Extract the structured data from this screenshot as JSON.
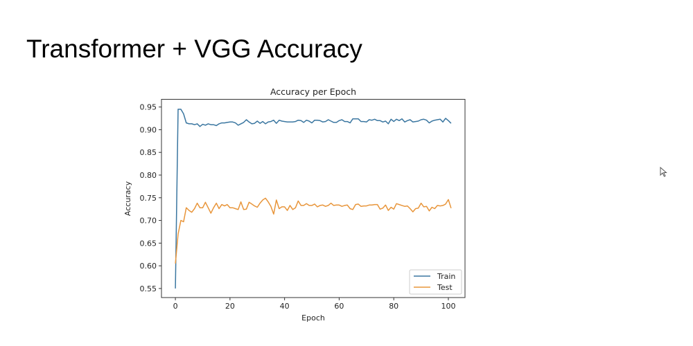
{
  "slide": {
    "title": "Transformer + VGG Accuracy"
  },
  "chart_data": {
    "type": "line",
    "title": "Accuracy per Epoch",
    "xlabel": "Epoch",
    "ylabel": "Accuracy",
    "xlim": [
      -5.1,
      106.1
    ],
    "ylim": [
      0.53,
      0.967
    ],
    "xticks": [
      0,
      20,
      40,
      60,
      80,
      100
    ],
    "xtick_labels": [
      "0",
      "20",
      "40",
      "60",
      "80",
      "100"
    ],
    "yticks": [
      0.55,
      0.6,
      0.65,
      0.7,
      0.75,
      0.8,
      0.85,
      0.9,
      0.95
    ],
    "ytick_labels": [
      "0.55",
      "0.60",
      "0.65",
      "0.70",
      "0.75",
      "0.80",
      "0.85",
      "0.90",
      "0.95"
    ],
    "grid": false,
    "legend": "bottom-right",
    "series": [
      {
        "name": "Train",
        "color": "#3a76a0",
        "values": [
          0.55,
          0.945,
          0.945,
          0.935,
          0.915,
          0.913,
          0.913,
          0.911,
          0.913,
          0.907,
          0.912,
          0.91,
          0.913,
          0.911,
          0.911,
          0.909,
          0.913,
          0.915,
          0.915,
          0.916,
          0.917,
          0.917,
          0.915,
          0.91,
          0.913,
          0.916,
          0.922,
          0.917,
          0.913,
          0.914,
          0.919,
          0.914,
          0.918,
          0.913,
          0.917,
          0.918,
          0.921,
          0.914,
          0.921,
          0.919,
          0.918,
          0.917,
          0.917,
          0.917,
          0.918,
          0.921,
          0.92,
          0.916,
          0.921,
          0.919,
          0.915,
          0.921,
          0.921,
          0.92,
          0.917,
          0.918,
          0.922,
          0.919,
          0.916,
          0.916,
          0.92,
          0.922,
          0.918,
          0.918,
          0.915,
          0.924,
          0.924,
          0.924,
          0.918,
          0.918,
          0.917,
          0.922,
          0.921,
          0.923,
          0.92,
          0.92,
          0.917,
          0.919,
          0.913,
          0.923,
          0.918,
          0.923,
          0.92,
          0.924,
          0.917,
          0.92,
          0.922,
          0.917,
          0.918,
          0.919,
          0.922,
          0.923,
          0.921,
          0.915,
          0.919,
          0.921,
          0.922,
          0.923,
          0.917,
          0.925,
          0.92,
          0.914
        ]
      },
      {
        "name": "Test",
        "color": "#e8953a",
        "values": [
          0.605,
          0.67,
          0.7,
          0.697,
          0.728,
          0.722,
          0.718,
          0.726,
          0.738,
          0.728,
          0.728,
          0.74,
          0.728,
          0.716,
          0.728,
          0.738,
          0.726,
          0.735,
          0.732,
          0.735,
          0.728,
          0.728,
          0.726,
          0.724,
          0.741,
          0.724,
          0.725,
          0.74,
          0.736,
          0.732,
          0.729,
          0.738,
          0.745,
          0.749,
          0.741,
          0.731,
          0.714,
          0.745,
          0.726,
          0.73,
          0.73,
          0.722,
          0.733,
          0.724,
          0.728,
          0.743,
          0.733,
          0.733,
          0.737,
          0.733,
          0.733,
          0.736,
          0.73,
          0.733,
          0.734,
          0.731,
          0.733,
          0.738,
          0.733,
          0.734,
          0.734,
          0.731,
          0.733,
          0.734,
          0.726,
          0.724,
          0.735,
          0.736,
          0.731,
          0.732,
          0.732,
          0.734,
          0.734,
          0.735,
          0.735,
          0.725,
          0.727,
          0.734,
          0.722,
          0.729,
          0.725,
          0.737,
          0.735,
          0.733,
          0.731,
          0.732,
          0.726,
          0.719,
          0.726,
          0.727,
          0.738,
          0.73,
          0.731,
          0.721,
          0.729,
          0.726,
          0.733,
          0.732,
          0.733,
          0.736,
          0.746,
          0.727
        ]
      }
    ]
  }
}
